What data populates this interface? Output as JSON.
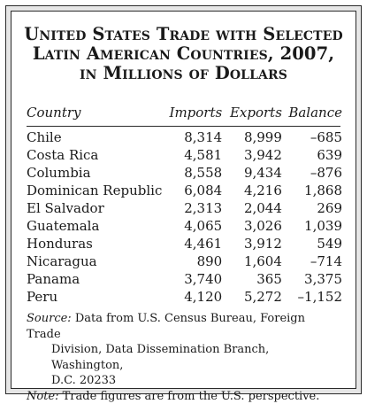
{
  "title": {
    "line1": "United States Trade with Selected",
    "line2": "Latin American Countries, 2007,",
    "line3": "in Millions of Dollars"
  },
  "table": {
    "headers": [
      "Country",
      "Imports",
      "Exports",
      "Balance"
    ],
    "rows": [
      {
        "country": "Chile",
        "imports": "8,314",
        "exports": "8,999",
        "balance": "–685"
      },
      {
        "country": "Costa Rica",
        "imports": "4,581",
        "exports": "3,942",
        "balance": "639"
      },
      {
        "country": "Columbia",
        "imports": "8,558",
        "exports": "9,434",
        "balance": "–876"
      },
      {
        "country": "Dominican Republic",
        "imports": "6,084",
        "exports": "4,216",
        "balance": "1,868"
      },
      {
        "country": "El Salvador",
        "imports": "2,313",
        "exports": "2,044",
        "balance": "269"
      },
      {
        "country": "Guatemala",
        "imports": "4,065",
        "exports": "3,026",
        "balance": "1,039"
      },
      {
        "country": "Honduras",
        "imports": "4,461",
        "exports": "3,912",
        "balance": "549"
      },
      {
        "country": "Nicaragua",
        "imports": "890",
        "exports": "1,604",
        "balance": "–714"
      },
      {
        "country": "Panama",
        "imports": "3,740",
        "exports": "365",
        "balance": "3,375"
      },
      {
        "country": "Peru",
        "imports": "4,120",
        "exports": "5,272",
        "balance": "–1,152"
      }
    ]
  },
  "source": {
    "label": "Source:",
    "line1": " Data from U.S. Census Bureau, Foreign Trade",
    "line2": "Division, Data Dissemination Branch, Washington,",
    "line3": "D.C. 20233"
  },
  "note": {
    "label": "Note:",
    "text": " Trade figures are from the U.S. perspective."
  }
}
